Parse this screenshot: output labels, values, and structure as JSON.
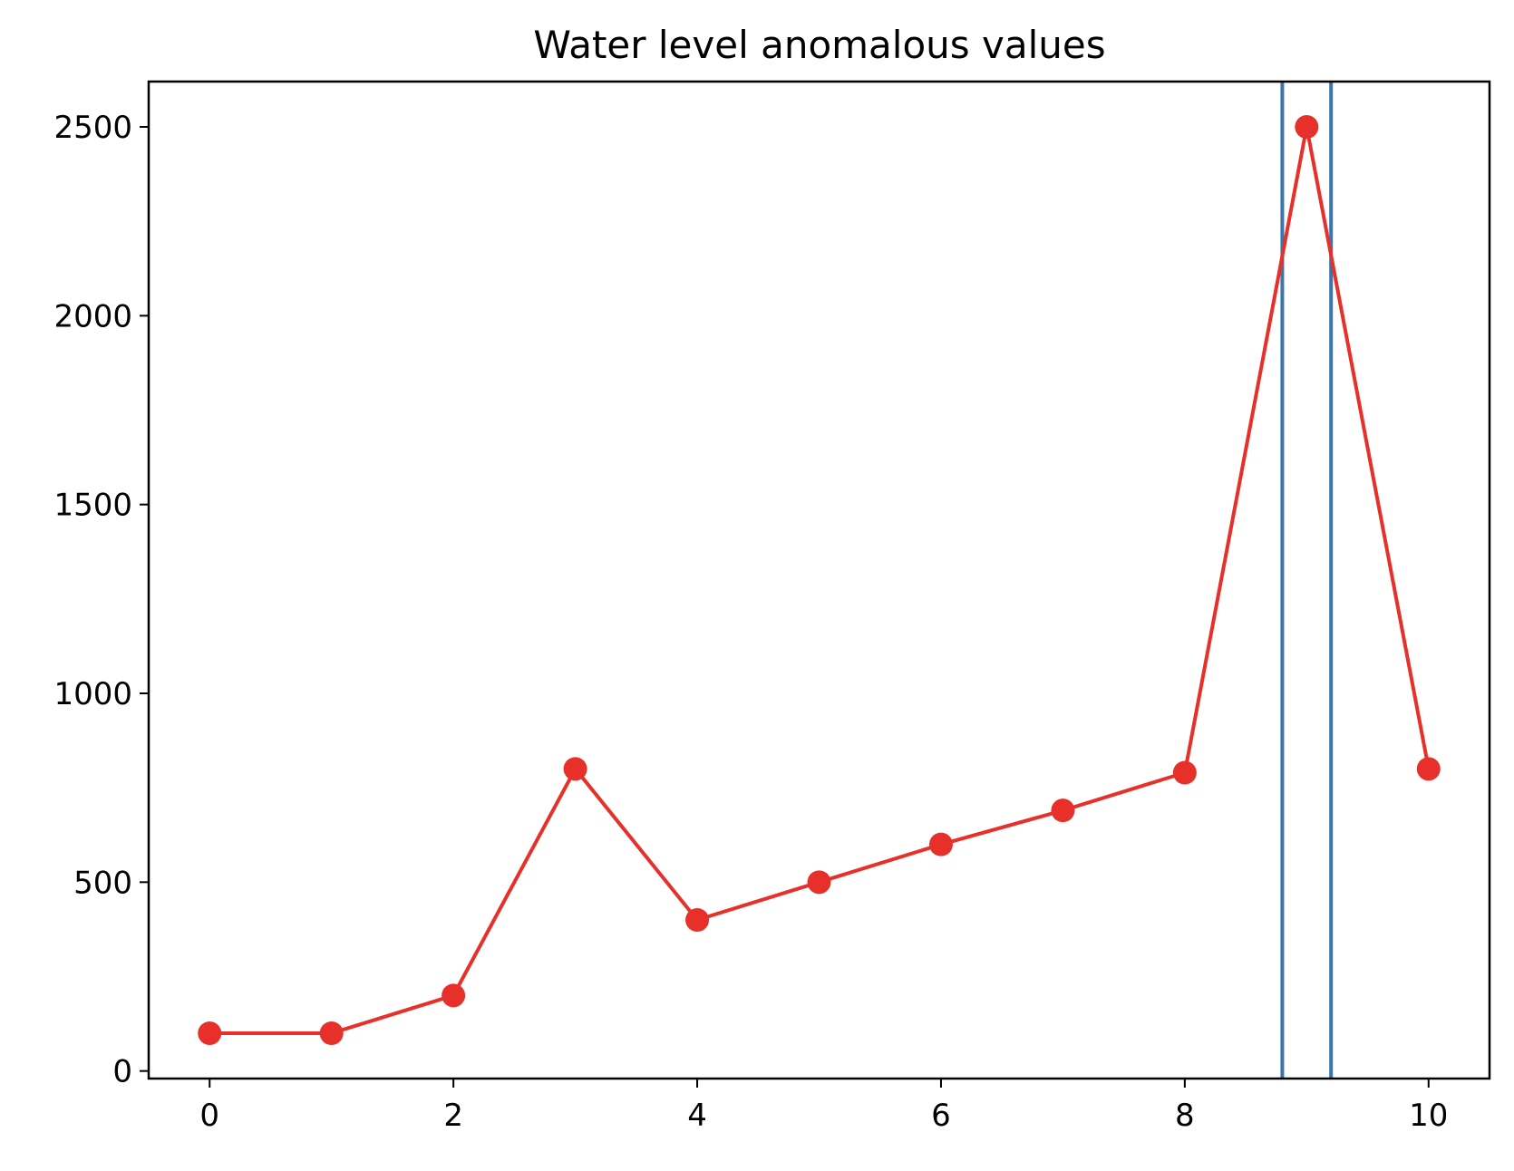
{
  "chart_data": {
    "type": "line",
    "title": "Water level anomalous values",
    "xlabel": "",
    "ylabel": "",
    "xlim": [
      -0.5,
      10.5
    ],
    "ylim": [
      -20,
      2620
    ],
    "x_ticks": [
      0,
      2,
      4,
      6,
      8,
      10
    ],
    "y_ticks": [
      0,
      500,
      1000,
      1500,
      2000,
      2500
    ],
    "grid": false,
    "series": [
      {
        "x": [
          0,
          1,
          2,
          3,
          4,
          5,
          6,
          7,
          8,
          9,
          10
        ],
        "values": [
          100,
          100,
          200,
          800,
          400,
          500,
          600,
          690,
          790,
          2500,
          800
        ],
        "color": "#e8302a",
        "marker": "circle"
      }
    ],
    "vertical_lines": [
      {
        "x": 8.8,
        "color": "#3a75ad"
      },
      {
        "x": 9.2,
        "color": "#3a75ad"
      }
    ]
  }
}
